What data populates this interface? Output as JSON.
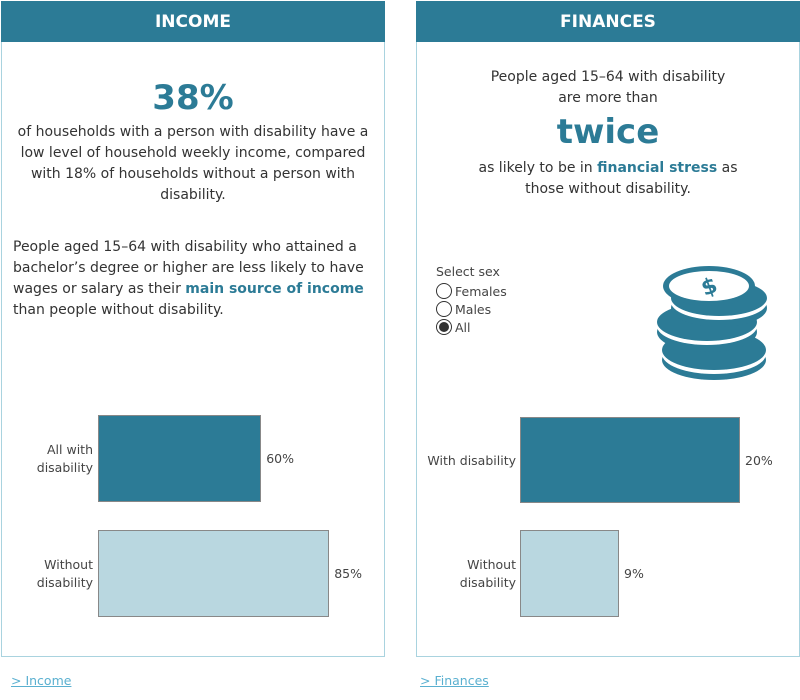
{
  "income": {
    "title": "INCOME",
    "stat": "38%",
    "stat_text": "of households with a person with disability have a low level of household weekly income, compared with 18% of households without a person with disability.",
    "para_before": "People aged 15–64 with disability who attained a bachelor’s degree or higher are less likely to have wages or salary as their ",
    "para_highlight": "main source of income",
    "para_after": " than people without disability.",
    "link": "> Income"
  },
  "finances": {
    "title": "FINANCES",
    "line1": "People aged 15–64 with disability",
    "line2": "are more than",
    "big": "twice",
    "line3_before": "as likely to be in ",
    "line3_highlight": "financial stress",
    "line3_after": " as",
    "line4": "those without disability.",
    "filter": {
      "label": "Select sex",
      "options": [
        "Females",
        "Males",
        "All"
      ],
      "selected": "All"
    },
    "icon": "coins-dollar-icon",
    "link": "> Finances"
  },
  "colors": {
    "accent": "#2c7b96",
    "light": "#b9d7e0"
  },
  "chart_data": [
    {
      "type": "bar",
      "orientation": "horizontal",
      "categories": [
        "All with disability",
        "Without disability"
      ],
      "values": [
        60,
        85
      ],
      "labels": [
        "60%",
        "85%"
      ],
      "xlim": [
        0,
        100
      ]
    },
    {
      "type": "bar",
      "orientation": "horizontal",
      "categories": [
        "With disability",
        "Without disability"
      ],
      "values": [
        20,
        9
      ],
      "labels": [
        "20%",
        "9%"
      ],
      "xlim": [
        0,
        30
      ]
    }
  ]
}
